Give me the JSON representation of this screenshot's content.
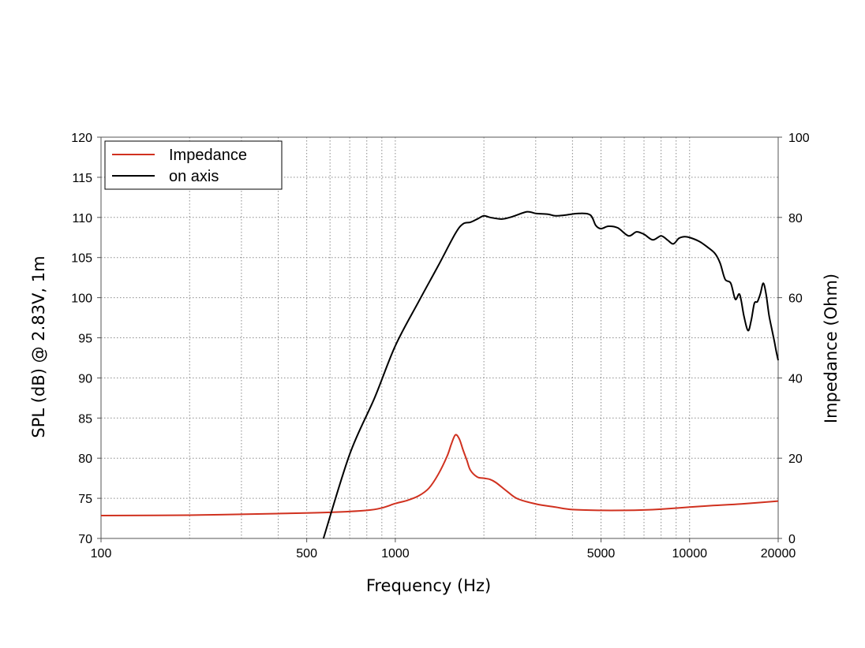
{
  "chart_data": {
    "type": "line",
    "xlabel": "Frequency (Hz)",
    "ylabel": "SPL (dB) @ 2.83V, 1m",
    "y2label": "Impedance (Ohm)",
    "x_scale": "log",
    "xlim": [
      100,
      20000
    ],
    "ylim": [
      70,
      120
    ],
    "y2lim": [
      0,
      100
    ],
    "x_ticks": [
      100,
      500,
      1000,
      5000,
      10000,
      20000
    ],
    "x_tick_labels": [
      "100",
      "500",
      "1000",
      "5000",
      "10000",
      "20000"
    ],
    "y_ticks": [
      70,
      75,
      80,
      85,
      90,
      95,
      100,
      105,
      110,
      115,
      120
    ],
    "y_tick_labels": [
      "70",
      "75",
      "80",
      "85",
      "90",
      "95",
      "100",
      "105",
      "110",
      "115",
      "120"
    ],
    "y2_ticks": [
      0,
      20,
      40,
      60,
      80,
      100
    ],
    "y2_tick_labels": [
      "0",
      "20",
      "40",
      "60",
      "80",
      "100"
    ],
    "grid": true,
    "legend_position": "top-left",
    "series": [
      {
        "name": "Impedance",
        "color": "#d0311f",
        "axis": "right",
        "x": [
          100,
          200,
          400,
          600,
          800,
          900,
          1000,
          1100,
          1200,
          1300,
          1400,
          1500,
          1550,
          1600,
          1650,
          1700,
          1750,
          1800,
          1900,
          2000,
          2100,
          2200,
          2400,
          2600,
          3000,
          3500,
          4000,
          5000,
          6000,
          7000,
          8000,
          10000,
          12000,
          15000,
          20000
        ],
        "values": [
          5.7,
          5.8,
          6.2,
          6.5,
          7.0,
          7.6,
          8.7,
          9.5,
          10.6,
          12.5,
          16.0,
          20.5,
          23.5,
          25.8,
          24.8,
          22.0,
          19.5,
          17.0,
          15.3,
          15.0,
          14.7,
          13.9,
          11.7,
          9.9,
          8.6,
          7.8,
          7.2,
          7.0,
          7.0,
          7.1,
          7.3,
          7.8,
          8.2,
          8.6,
          9.3
        ]
      },
      {
        "name": "on axis",
        "color": "#000000",
        "axis": "left",
        "x": [
          570,
          700,
          850,
          1000,
          1200,
          1400,
          1600,
          1700,
          1800,
          1900,
          2000,
          2100,
          2300,
          2500,
          2800,
          3000,
          3300,
          3500,
          3800,
          4200,
          4600,
          4800,
          5000,
          5300,
          5700,
          6200,
          6600,
          7000,
          7500,
          8000,
          8400,
          8800,
          9200,
          9600,
          10000,
          10800,
          11500,
          12200,
          12700,
          13200,
          13800,
          14300,
          14800,
          15300,
          15800,
          16200,
          16600,
          17000,
          17400,
          17800,
          18200,
          18600,
          19000,
          19400,
          19700,
          20000
        ],
        "values": [
          70,
          80.5,
          87.5,
          94,
          99.5,
          104,
          108,
          109.2,
          109.4,
          109.8,
          110.2,
          110.0,
          109.8,
          110.1,
          110.7,
          110.5,
          110.4,
          110.2,
          110.3,
          110.5,
          110.3,
          109.0,
          108.6,
          108.9,
          108.7,
          107.7,
          108.2,
          107.9,
          107.2,
          107.7,
          107.2,
          106.7,
          107.4,
          107.6,
          107.5,
          107.0,
          106.3,
          105.5,
          104.3,
          102.3,
          101.8,
          99.8,
          100.4,
          97.7,
          95.9,
          97.2,
          99.3,
          99.5,
          100.5,
          101.8,
          100.4,
          97.9,
          96.2,
          94.6,
          93.3,
          92.2
        ]
      }
    ]
  }
}
